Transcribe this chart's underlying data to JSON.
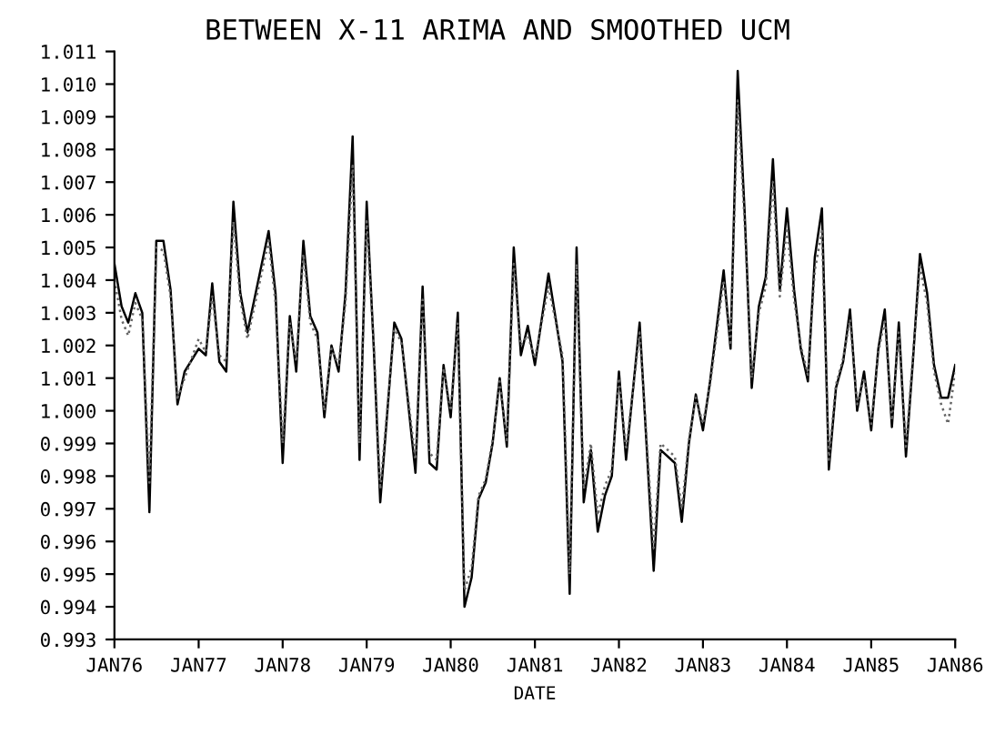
{
  "chart_data": {
    "type": "line",
    "title": "BETWEEN X-11 ARIMA AND SMOOTHED UCM",
    "xlabel": "DATE",
    "x": [
      "1976-01",
      "1976-02",
      "1976-03",
      "1976-04",
      "1976-05",
      "1976-06",
      "1976-07",
      "1976-08",
      "1976-09",
      "1976-10",
      "1976-11",
      "1977-01",
      "1977-02",
      "1977-03",
      "1977-04",
      "1977-05",
      "1977-06",
      "1977-07",
      "1977-08",
      "1977-11",
      "1977-12",
      "1978-01",
      "1978-02",
      "1978-03",
      "1978-04",
      "1978-05",
      "1978-06",
      "1978-07",
      "1978-08",
      "1978-09",
      "1978-10",
      "1978-11",
      "1978-12",
      "1979-01",
      "1979-02",
      "1979-03",
      "1979-05",
      "1979-06",
      "1979-08",
      "1979-09",
      "1979-10",
      "1979-11",
      "1979-12",
      "1980-01",
      "1980-02",
      "1980-03",
      "1980-04",
      "1980-05",
      "1980-06",
      "1980-07",
      "1980-08",
      "1980-09",
      "1980-10",
      "1980-11",
      "1980-12",
      "1981-01",
      "1981-03",
      "1981-05",
      "1981-06",
      "1981-07",
      "1981-08",
      "1981-09",
      "1981-10",
      "1981-11",
      "1981-12",
      "1982-01",
      "1982-02",
      "1982-04",
      "1982-06",
      "1982-07",
      "1982-09",
      "1982-10",
      "1982-11",
      "1982-12",
      "1983-01",
      "1983-02",
      "1983-04",
      "1983-05",
      "1983-06",
      "1983-07",
      "1983-08",
      "1983-09",
      "1983-10",
      "1983-11",
      "1983-12",
      "1984-01",
      "1984-02",
      "1984-03",
      "1984-04",
      "1984-05",
      "1984-06",
      "1984-07",
      "1984-08",
      "1984-09",
      "1984-10",
      "1984-11",
      "1984-12",
      "1985-01",
      "1985-02",
      "1985-03",
      "1985-04",
      "1985-05",
      "1985-06",
      "1985-07",
      "1985-08",
      "1985-09",
      "1985-10",
      "1985-11",
      "1985-12",
      "1986-01"
    ],
    "series": [
      {
        "color": "#000000",
        "line_style": "solid",
        "values": [
          1.0045,
          1.0032,
          1.0027,
          1.0036,
          1.003,
          0.9969,
          1.0052,
          1.0052,
          1.0037,
          1.0002,
          1.0012,
          1.0019,
          1.0017,
          1.0039,
          1.0015,
          1.0012,
          1.0064,
          1.0036,
          1.0024,
          1.0055,
          1.0036,
          0.9984,
          1.0029,
          1.0012,
          1.0052,
          1.0029,
          1.0024,
          0.9998,
          1.002,
          1.0012,
          1.0036,
          1.0084,
          0.9985,
          1.0064,
          1.0019,
          0.9972,
          1.0027,
          1.0022,
          0.9981,
          1.0038,
          0.9984,
          0.9982,
          1.0014,
          0.9998,
          1.003,
          0.994,
          0.9949,
          0.9973,
          0.9978,
          0.999,
          1.001,
          0.9989,
          1.005,
          1.0017,
          1.0026,
          1.0014,
          1.0042,
          1.0015,
          0.9944,
          1.005,
          0.9972,
          0.9988,
          0.9963,
          0.9974,
          0.998,
          1.0012,
          0.9985,
          1.0027,
          0.9951,
          0.9988,
          0.9984,
          0.9966,
          0.999,
          1.0005,
          0.9994,
          1.0009,
          1.0043,
          1.0019,
          1.0104,
          1.0061,
          1.0007,
          1.0032,
          1.0041,
          1.0077,
          1.0037,
          1.0062,
          1.0037,
          1.0019,
          1.0009,
          1.0047,
          1.0062,
          0.9982,
          1.0007,
          1.0015,
          1.0031,
          1.0,
          1.0012,
          0.9994,
          1.0019,
          1.0031,
          0.9995,
          1.0027,
          0.9986,
          1.0015,
          1.0048,
          1.0036,
          1.0014,
          1.0004,
          1.0004,
          1.0014
        ]
      },
      {
        "color": "#666666",
        "line_style": "dotted",
        "values": [
          1.004,
          1.0028,
          1.0023,
          1.0033,
          1.0028,
          0.9978,
          1.005,
          1.0049,
          1.0035,
          1.0004,
          1.001,
          1.0022,
          1.0018,
          1.0035,
          1.0017,
          1.0015,
          1.0058,
          1.0034,
          1.0022,
          1.0052,
          1.0033,
          0.999,
          1.0027,
          1.0015,
          1.0048,
          1.0027,
          1.0022,
          1.0,
          1.0019,
          1.0014,
          1.0033,
          1.0075,
          0.999,
          1.0058,
          1.002,
          0.9976,
          1.0025,
          1.0021,
          0.9985,
          1.0034,
          0.9987,
          0.9985,
          1.0013,
          1.0,
          1.0027,
          0.9945,
          0.9952,
          0.9974,
          0.9979,
          0.9991,
          1.0009,
          0.9991,
          1.0045,
          1.002,
          1.0023,
          1.0016,
          1.0038,
          1.0017,
          0.995,
          1.0045,
          0.9976,
          0.999,
          0.9968,
          0.9977,
          0.9982,
          1.001,
          0.9988,
          1.0024,
          0.9958,
          0.999,
          0.9986,
          0.997,
          0.9991,
          1.0004,
          0.9996,
          1.0008,
          1.004,
          1.002,
          1.0095,
          1.0058,
          1.001,
          1.003,
          1.0038,
          1.007,
          1.0035,
          1.0056,
          1.0034,
          1.002,
          1.0011,
          1.0043,
          1.0055,
          0.9985,
          1.0008,
          1.0016,
          1.0028,
          1.0002,
          1.001,
          0.9996,
          1.0018,
          1.0028,
          0.9997,
          1.0024,
          0.9989,
          1.0016,
          1.0044,
          1.0033,
          1.0012,
          1.0002,
          0.9996,
          1.0012
        ]
      }
    ],
    "xlim": [
      "1976-01",
      "1986-01"
    ],
    "xticks": [
      {
        "value": "1976-01",
        "label": "JAN76"
      },
      {
        "value": "1977-01",
        "label": "JAN77"
      },
      {
        "value": "1978-01",
        "label": "JAN78"
      },
      {
        "value": "1979-01",
        "label": "JAN79"
      },
      {
        "value": "1980-01",
        "label": "JAN80"
      },
      {
        "value": "1981-01",
        "label": "JAN81"
      },
      {
        "value": "1982-01",
        "label": "JAN82"
      },
      {
        "value": "1983-01",
        "label": "JAN83"
      },
      {
        "value": "1984-01",
        "label": "JAN84"
      },
      {
        "value": "1985-01",
        "label": "JAN85"
      },
      {
        "value": "1986-01",
        "label": "JAN86"
      }
    ],
    "ylim": [
      0.993,
      1.011
    ],
    "yticks": [
      {
        "value": 0.993,
        "label": "0.993"
      },
      {
        "value": 0.994,
        "label": "0.994"
      },
      {
        "value": 0.995,
        "label": "0.995"
      },
      {
        "value": 0.996,
        "label": "0.996"
      },
      {
        "value": 0.997,
        "label": "0.997"
      },
      {
        "value": 0.998,
        "label": "0.998"
      },
      {
        "value": 0.999,
        "label": "0.999"
      },
      {
        "value": 1.0,
        "label": "1.000"
      },
      {
        "value": 1.001,
        "label": "1.001"
      },
      {
        "value": 1.002,
        "label": "1.002"
      },
      {
        "value": 1.003,
        "label": "1.003"
      },
      {
        "value": 1.004,
        "label": "1.004"
      },
      {
        "value": 1.005,
        "label": "1.005"
      },
      {
        "value": 1.006,
        "label": "1.006"
      },
      {
        "value": 1.007,
        "label": "1.007"
      },
      {
        "value": 1.008,
        "label": "1.008"
      },
      {
        "value": 1.009,
        "label": "1.009"
      },
      {
        "value": 1.01,
        "label": "1.010"
      },
      {
        "value": 1.011,
        "label": "1.011"
      }
    ],
    "grid": false,
    "marker": "none"
  }
}
